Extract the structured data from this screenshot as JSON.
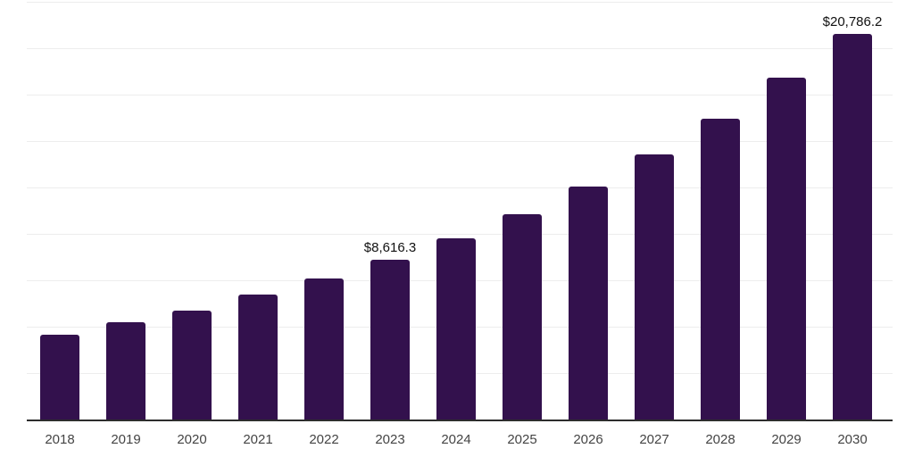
{
  "figure": {
    "background_color": "#ffffff"
  },
  "chart_data": {
    "type": "bar",
    "title": "",
    "xlabel": "",
    "ylabel": "",
    "categories": [
      "2018",
      "2019",
      "2020",
      "2021",
      "2022",
      "2023",
      "2024",
      "2025",
      "2026",
      "2027",
      "2028",
      "2029",
      "2030"
    ],
    "values": [
      4560,
      5230,
      5890,
      6710,
      7580,
      8616.3,
      9780,
      11070,
      12560,
      14270,
      16190,
      18400,
      20786.2
    ],
    "data_labels": [
      "",
      "",
      "",
      "",
      "",
      "$8,616.3",
      "",
      "",
      "",
      "",
      "",
      "",
      "$20,786.2"
    ],
    "ylim": [
      0,
      22500
    ],
    "gridline_step": 2500,
    "grid": true,
    "legend_position": "none",
    "bar_color": "#33114d",
    "axis_line_color": "#2d2d2d",
    "gridline_color": "#ededed",
    "tick_label_color": "#444444",
    "data_label_color": "#111111"
  }
}
